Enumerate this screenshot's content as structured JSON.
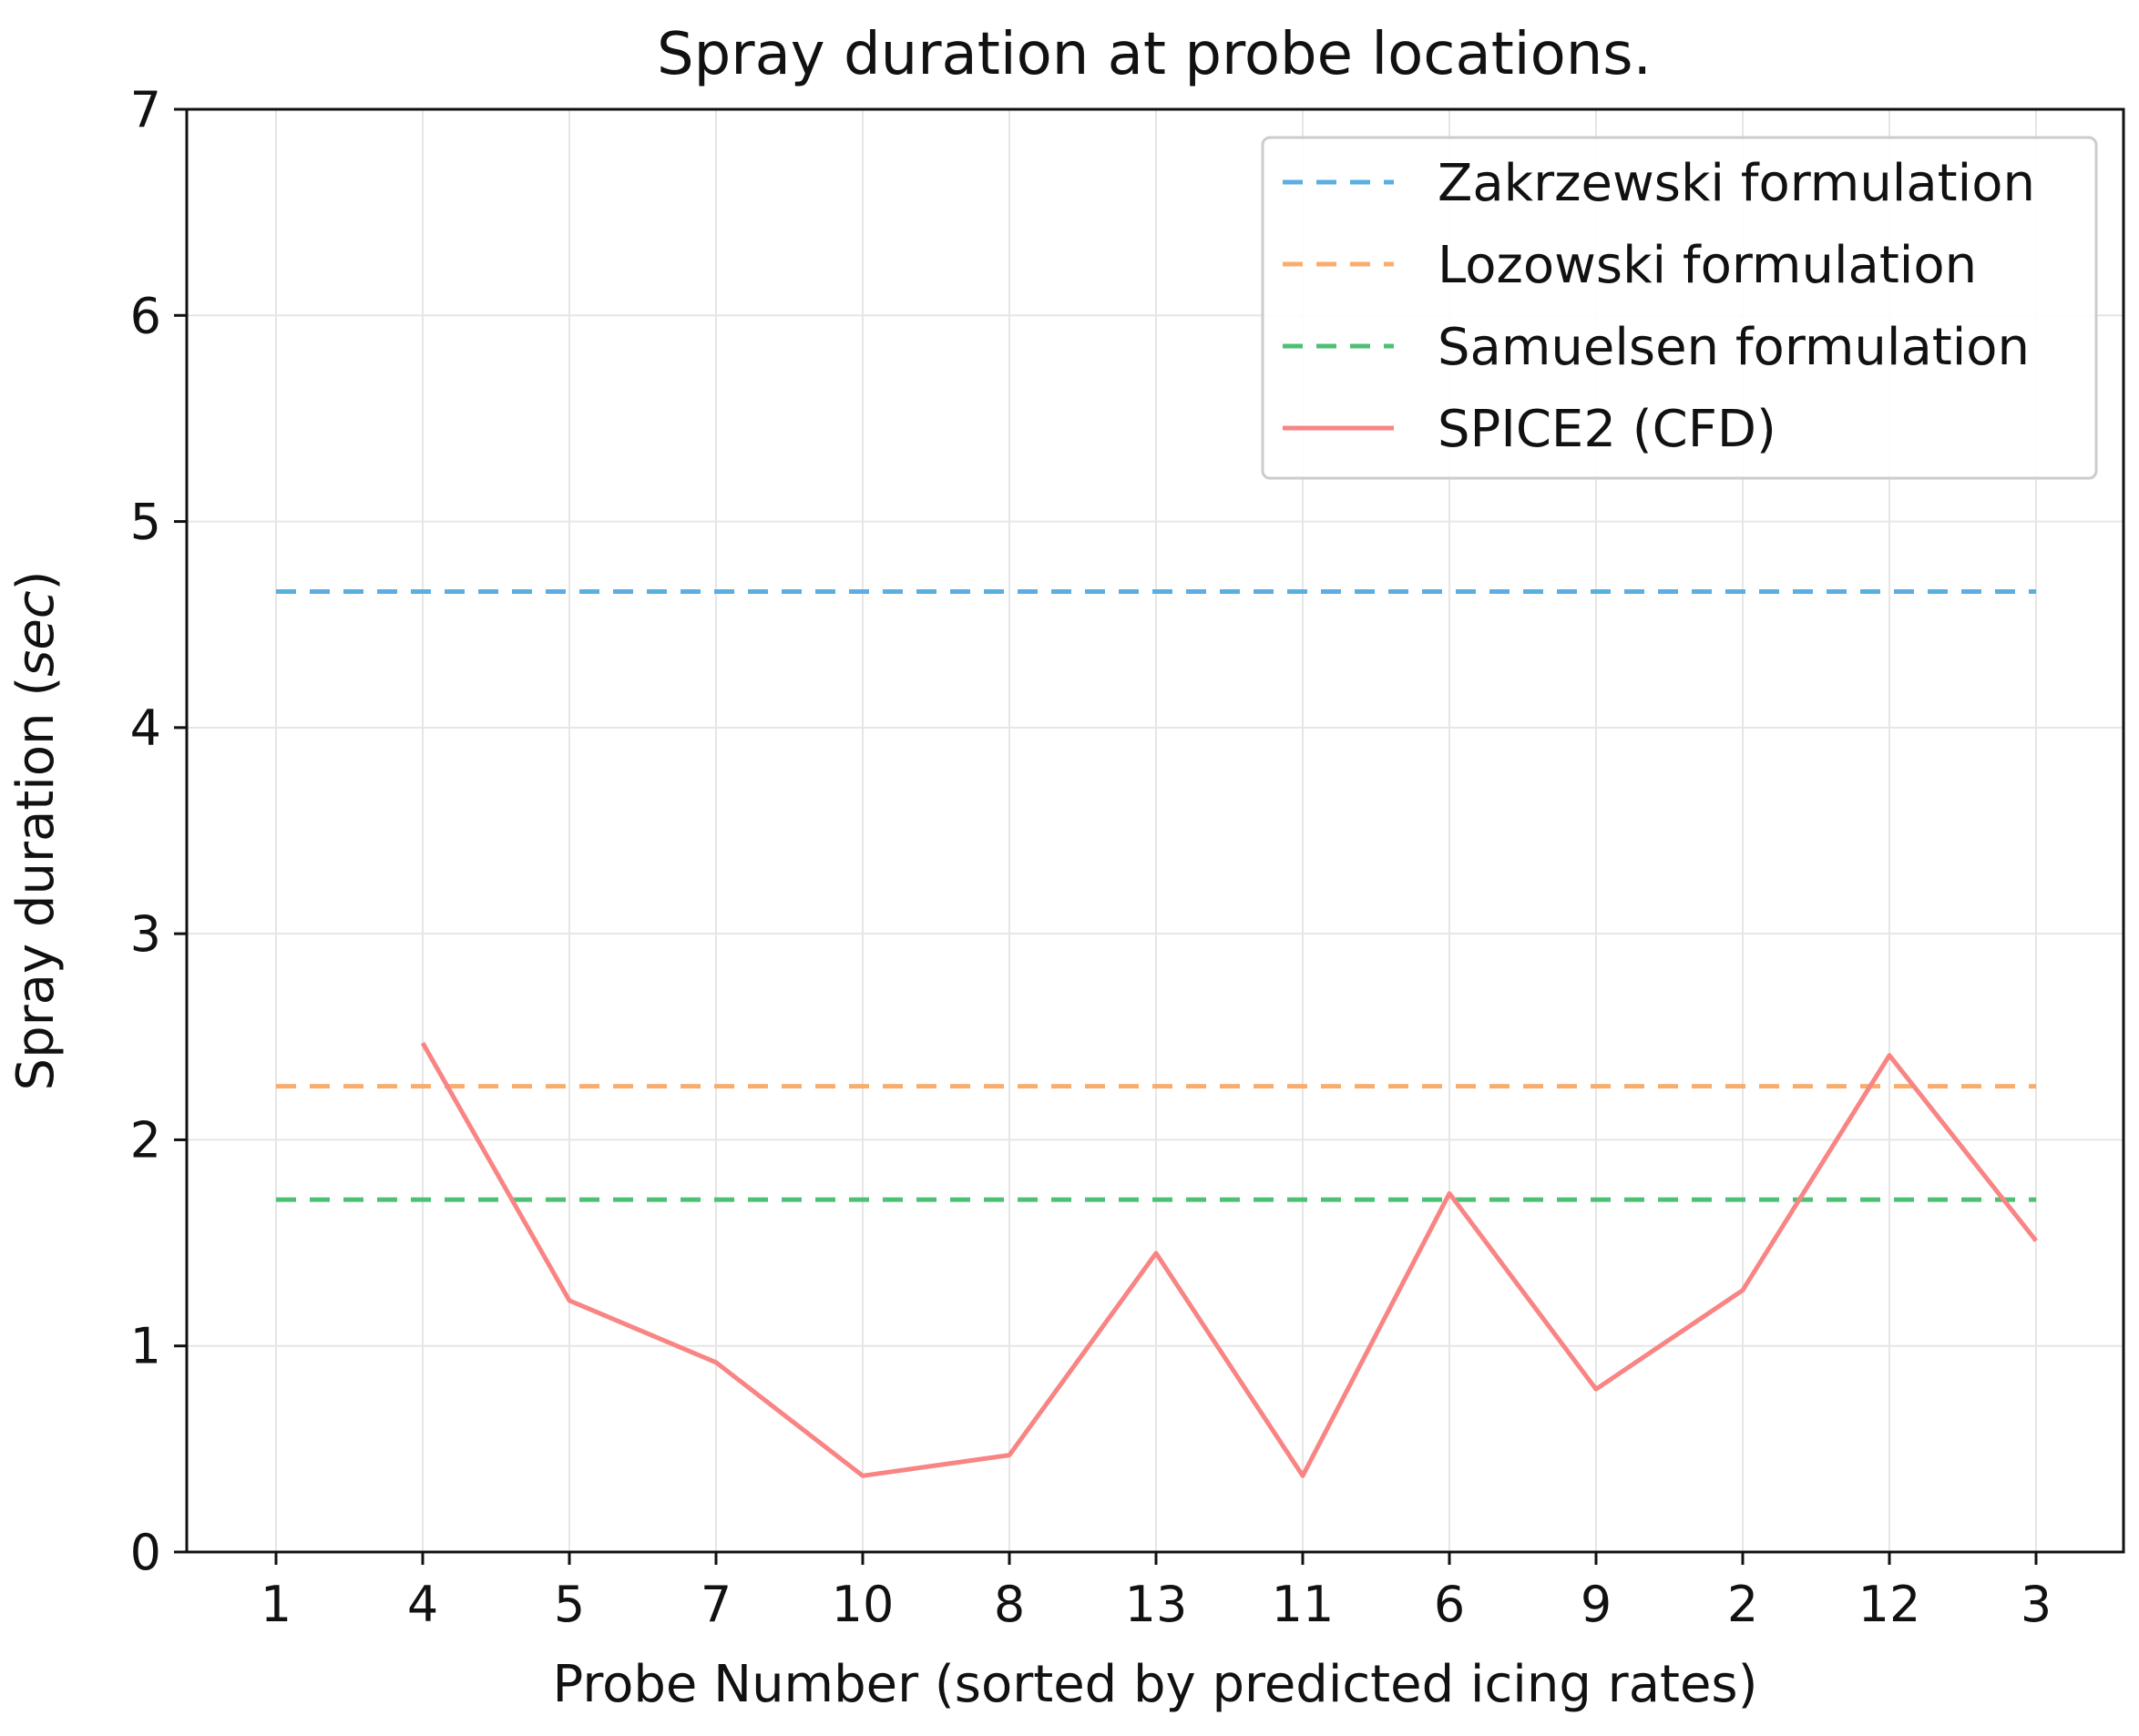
{
  "chart_data": {
    "type": "line",
    "title": "Spray duration at probe locations.",
    "xlabel": "Probe Number (sorted by predicted icing rates)",
    "ylabel": {
      "prefix": "Spray duration (",
      "unit": "sec",
      "suffix": ")"
    },
    "categories": [
      "1",
      "4",
      "5",
      "7",
      "10",
      "8",
      "13",
      "11",
      "6",
      "9",
      "2",
      "12",
      "3"
    ],
    "ylim": [
      0,
      7
    ],
    "yticks": [
      "0",
      "1",
      "2",
      "3",
      "4",
      "5",
      "6",
      "7"
    ],
    "grid": true,
    "legend_position": "top-right",
    "series": [
      {
        "name": "Zakrzewski formulation",
        "style": "dashed",
        "color": "#5aaee0",
        "values": [
          4.66,
          4.66,
          4.66,
          4.66,
          4.66,
          4.66,
          4.66,
          4.66,
          4.66,
          4.66,
          4.66,
          4.66,
          4.66
        ]
      },
      {
        "name": "Lozowski formulation",
        "style": "dashed",
        "color": "#f9ad6c",
        "values": [
          2.26,
          2.26,
          2.26,
          2.26,
          2.26,
          2.26,
          2.26,
          2.26,
          2.26,
          2.26,
          2.26,
          2.26,
          2.26
        ]
      },
      {
        "name": "Samuelsen formulation",
        "style": "dashed",
        "color": "#4cc175",
        "values": [
          1.71,
          1.71,
          1.71,
          1.71,
          1.71,
          1.71,
          1.71,
          1.71,
          1.71,
          1.71,
          1.71,
          1.71,
          1.71
        ]
      },
      {
        "name": "SPICE2 (CFD)",
        "style": "solid",
        "color": "#f98484",
        "values": [
          null,
          2.47,
          1.22,
          0.92,
          0.37,
          0.47,
          1.45,
          0.37,
          1.74,
          0.79,
          1.27,
          2.41,
          1.51
        ]
      }
    ]
  }
}
